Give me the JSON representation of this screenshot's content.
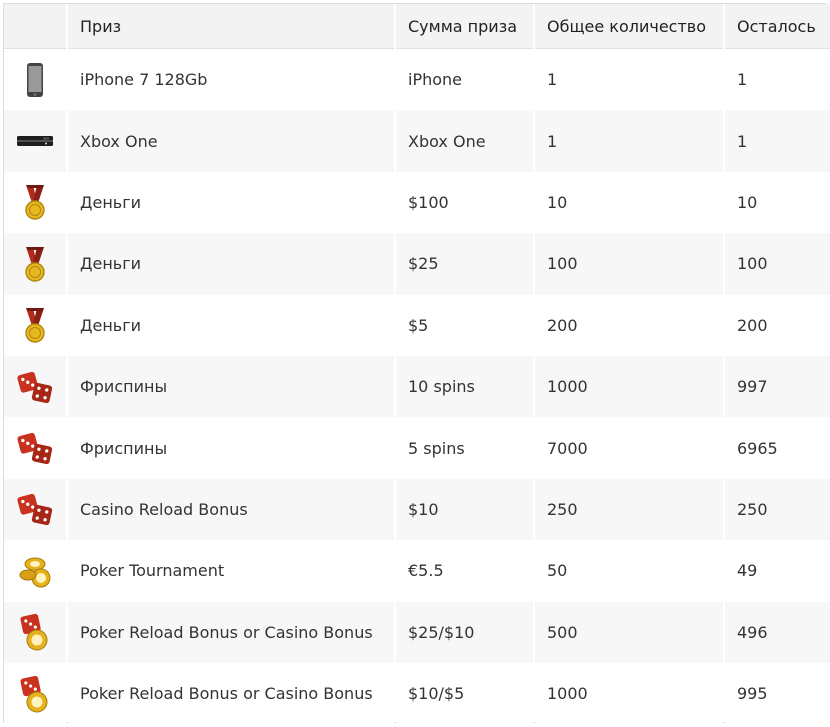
{
  "table": {
    "headers": [
      "",
      "Приз",
      "Сумма приза",
      "Общее количество",
      "Осталось"
    ],
    "rows": [
      {
        "icon": "smartphone-icon",
        "prize": "iPhone 7 128Gb",
        "amount": "iPhone",
        "total": "1",
        "left": "1"
      },
      {
        "icon": "game-console-icon",
        "prize": "Xbox One",
        "amount": "Xbox One",
        "total": "1",
        "left": "1"
      },
      {
        "icon": "medal-icon",
        "prize": "Деньги",
        "amount": "$100",
        "total": "10",
        "left": "10"
      },
      {
        "icon": "medal-icon",
        "prize": "Деньги",
        "amount": "$25",
        "total": "100",
        "left": "100"
      },
      {
        "icon": "medal-icon",
        "prize": "Деньги",
        "amount": "$5",
        "total": "200",
        "left": "200"
      },
      {
        "icon": "dice-icon",
        "prize": "Фриспины",
        "amount": "10 spins",
        "total": "1000",
        "left": "997"
      },
      {
        "icon": "dice-icon",
        "prize": "Фриспины",
        "amount": "5 spins",
        "total": "7000",
        "left": "6965"
      },
      {
        "icon": "dice-icon",
        "prize": "Casino Reload Bonus",
        "amount": "$10",
        "total": "250",
        "left": "250"
      },
      {
        "icon": "poker-chips-icon",
        "prize": "Poker Tournament",
        "amount": "€5.5",
        "total": "50",
        "left": "49"
      },
      {
        "icon": "dice-and-chip-icon",
        "prize": "Poker Reload Bonus or Casino Bonus",
        "amount": "$25/$10",
        "total": "500",
        "left": "496"
      },
      {
        "icon": "dice-and-chip-icon",
        "prize": "Poker Reload Bonus or Casino Bonus",
        "amount": "$10/$5",
        "total": "1000",
        "left": "995"
      }
    ]
  },
  "colors": {
    "dice": "#c8321f",
    "medal_ribbon": "#b02a1e",
    "medal_gold": "#e8b820",
    "chip_gold": "#e6b11c"
  }
}
